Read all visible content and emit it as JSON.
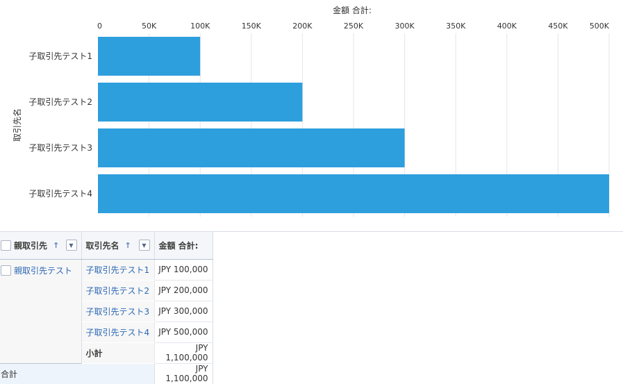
{
  "chart_data": {
    "type": "bar",
    "orientation": "horizontal",
    "title": "",
    "xlabel": "金額 合計:",
    "ylabel": "取引先名",
    "categories": [
      "子取引先テスト1",
      "子取引先テスト2",
      "子取引先テスト3",
      "子取引先テスト4"
    ],
    "values": [
      100000,
      200000,
      300000,
      500000
    ],
    "xlim": [
      0,
      500000
    ],
    "xticks": [
      "0",
      "50K",
      "100K",
      "150K",
      "200K",
      "250K",
      "300K",
      "350K",
      "400K",
      "450K",
      "500K"
    ],
    "xaxis_position": "top",
    "grid": true,
    "bar_color": "#2e9fdd"
  },
  "table": {
    "headers": {
      "parent": "親取引先",
      "name": "取引先名",
      "amount": "金額 合計:",
      "sort_arrow": "↑"
    },
    "parent_value": "親取引先テスト",
    "rows": [
      {
        "name": "子取引先テスト1",
        "amount": "JPY 100,000"
      },
      {
        "name": "子取引先テスト2",
        "amount": "JPY 200,000"
      },
      {
        "name": "子取引先テスト3",
        "amount": "JPY 300,000"
      },
      {
        "name": "子取引先テスト4",
        "amount": "JPY 500,000"
      }
    ],
    "subtotal_label": "小計",
    "subtotal_amount": "JPY 1,100,000",
    "total_label": "合計",
    "total_amount": "JPY 1,100,000"
  },
  "colors": {
    "bar": "#2e9fdd",
    "link": "#2c67b5",
    "grid": "#e5e5e5"
  }
}
